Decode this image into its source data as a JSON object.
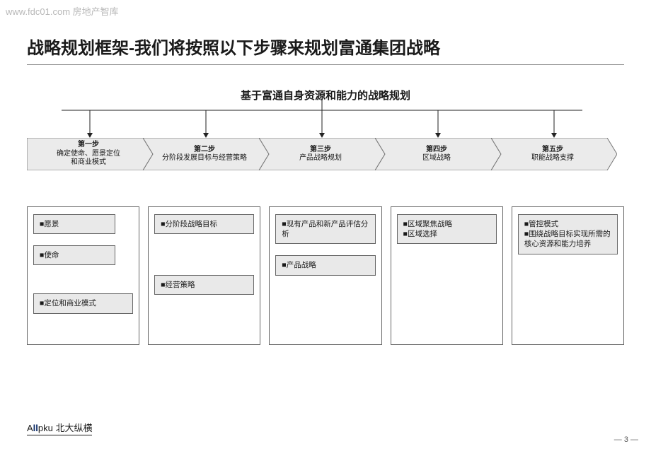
{
  "watermark": "www.fdc01.com 房地产智库",
  "title": "战略规划框架-我们将按照以下步骤来规划富通集团战略",
  "subtitle": "基于富通自身资源和能力的战略规划",
  "steps": [
    {
      "step": "第一步",
      "label": "确定使命、愿景定位\n和商业模式"
    },
    {
      "step": "第二步",
      "label": "分阶段发展目标与经营策略"
    },
    {
      "step": "第三步",
      "label": "产品战略规划"
    },
    {
      "step": "第四步",
      "label": "区域战略"
    },
    {
      "step": "第五步",
      "label": "职能战略支撑"
    }
  ],
  "chevron": {
    "fill": "#ebebeb",
    "stroke": "#777777",
    "width": 178,
    "notch": 14,
    "height": 46
  },
  "boxes": [
    {
      "items": [
        "■愿景",
        "■使命",
        "■定位和商业模式"
      ],
      "widths": [
        "wide",
        "wide",
        "full"
      ],
      "gaps": [
        0,
        6,
        30
      ]
    },
    {
      "items": [
        "■分阶段战略目标",
        "■经营策略"
      ],
      "widths": [
        "full",
        "full"
      ],
      "gaps": [
        0,
        48
      ]
    },
    {
      "items": [
        "■现有产品和新产品评估分析",
        "■产品战略"
      ],
      "widths": [
        "full",
        "full"
      ],
      "gaps": [
        0,
        6
      ]
    },
    {
      "items": [
        "■区域聚焦战略\n■区域选择"
      ],
      "widths": [
        "full"
      ],
      "gaps": [
        0
      ]
    },
    {
      "items": [
        "■管控模式\n■围绕战略目标实现所需的核心资源和能力培养"
      ],
      "widths": [
        "full"
      ],
      "gaps": [
        0
      ]
    }
  ],
  "footer": {
    "logo_prefix": "A",
    "logo_accent": "ll",
    "logo_suffix": "pku 北大纵横"
  },
  "page": "— 3 —",
  "colors": {
    "text": "#1a1a1a",
    "border": "#666666",
    "box_bg": "#e9e9e9",
    "page_bg": "#ffffff"
  }
}
